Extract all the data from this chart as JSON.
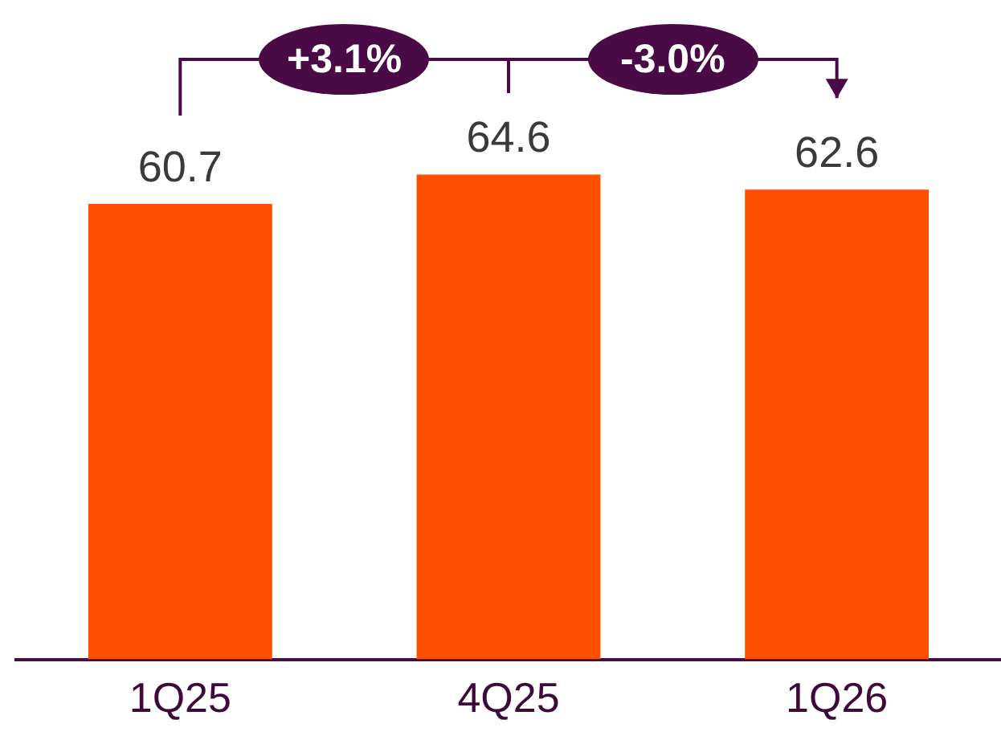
{
  "chart_data": {
    "type": "bar",
    "categories": [
      "1Q25",
      "4Q25",
      "1Q26"
    ],
    "values": [
      60.7,
      64.6,
      62.6
    ],
    "color": "#ff5000",
    "tick_labels": "x",
    "data_labels": true,
    "grid": false,
    "legend": false,
    "annotations": [
      "+3.1%",
      "-3.0%"
    ]
  }
}
